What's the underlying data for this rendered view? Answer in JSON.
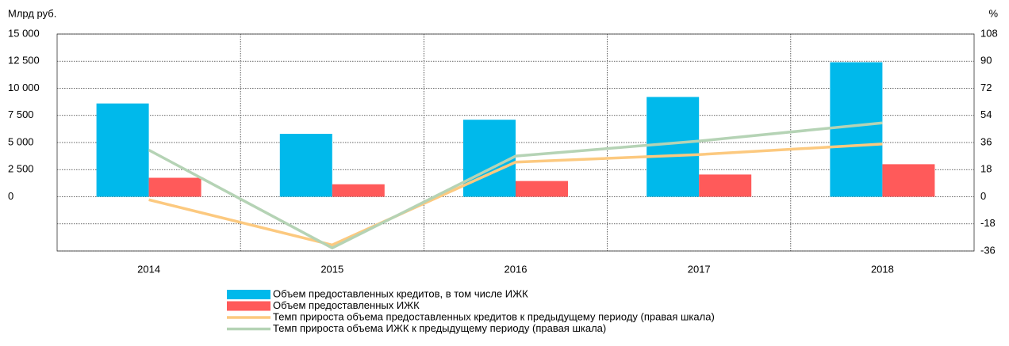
{
  "chart_data": {
    "type": "bar_line",
    "y_label": "Млрд руб.",
    "y2_label": "%",
    "categories": [
      "2014",
      "2015",
      "2016",
      "2017",
      "2018"
    ],
    "series": [
      {
        "name": "Объем предоставленных кредитов, в том числе ИЖК",
        "type": "bar",
        "color": "#00b9eb",
        "values": [
          8600,
          5800,
          7100,
          9200,
          12400
        ]
      },
      {
        "name": "Объем предоставленных ИЖК",
        "type": "bar",
        "color": "#ff5a5a",
        "values": [
          1750,
          1150,
          1450,
          2050,
          3000
        ]
      },
      {
        "name": "Темп прироста объема предоставленных кредитов к предыдущему периоду (правая шкала)",
        "type": "line",
        "axis": "y2",
        "color": "#fcc97f",
        "values": [
          -2,
          -32,
          23,
          28,
          35
        ]
      },
      {
        "name": "Темп прироста объема ИЖК к предыдущему периоду (правая шкала)",
        "type": "line",
        "axis": "y2",
        "color": "#b5d3b5",
        "values": [
          31,
          -34,
          27,
          37,
          49
        ]
      }
    ],
    "ylim": [
      -5000,
      15000
    ],
    "yticks": [
      {
        "value": 0,
        "label": "0"
      },
      {
        "value": 2500,
        "label": "2 500"
      },
      {
        "value": 5000,
        "label": "5 000"
      },
      {
        "value": 7500,
        "label": "7 500"
      },
      {
        "value": 10000,
        "label": "10 000"
      },
      {
        "value": 12500,
        "label": "12 500"
      },
      {
        "value": 15000,
        "label": "15 000"
      }
    ],
    "y2lim": [
      -36,
      108
    ],
    "y2ticks": [
      -36,
      -18,
      0,
      18,
      36,
      54,
      72,
      90,
      108
    ],
    "grid": true
  }
}
